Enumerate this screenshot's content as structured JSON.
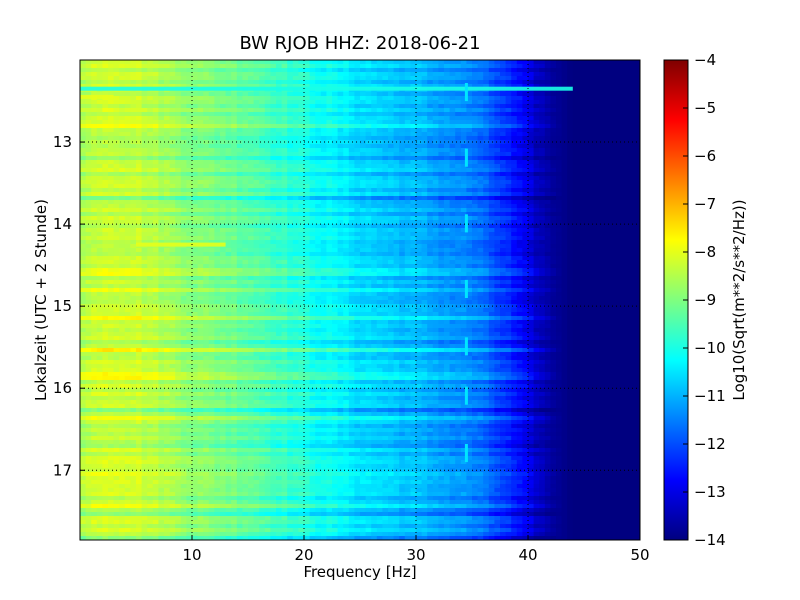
{
  "chart_data": {
    "type": "heatmap",
    "title": "BW RJOB HHZ: 2018-06-21",
    "xlabel": "Frequency [Hz]",
    "ylabel": "Lokalzeit (UTC + 2 Stunde)",
    "xlim": [
      0,
      50
    ],
    "ylim": [
      17.85,
      12.0
    ],
    "x_ticks": [
      10,
      20,
      30,
      40,
      50
    ],
    "y_ticks": [
      13,
      14,
      15,
      16,
      17
    ],
    "grid": true,
    "colormap": "jet",
    "colorbar": {
      "label": "Log10(Sqrt(m**2/s**2/Hz))",
      "min": -14,
      "max": -4,
      "ticks": [
        -4,
        -5,
        -6,
        -7,
        -8,
        -9,
        -10,
        -11,
        -12,
        -13,
        -14
      ]
    },
    "spectral_profile": {
      "description": "Typical amplitude (log10) vs frequency",
      "frequency": [
        0,
        2,
        5,
        10,
        15,
        20,
        25,
        30,
        35,
        38,
        40,
        42,
        44,
        46,
        50
      ],
      "value": [
        -8.6,
        -8.2,
        -8.3,
        -8.9,
        -9.3,
        -10.0,
        -10.6,
        -11.0,
        -11.5,
        -12.3,
        -13.1,
        -13.7,
        -14.0,
        -14.0,
        -14.0
      ]
    },
    "features": [
      {
        "type": "high-level band",
        "time": 14.25,
        "freq_range": [
          5,
          13
        ],
        "level": -8.0
      },
      {
        "type": "high-level band",
        "time": 12.45,
        "freq_range": [
          0,
          3
        ],
        "level": -8.0
      },
      {
        "type": "wideband line",
        "time": 12.35,
        "freq_range": [
          0,
          44
        ],
        "level": -10.0
      },
      {
        "type": "spectral line",
        "freq": 34.5,
        "level": -10.5
      }
    ]
  },
  "colors": {
    "jet_stops": [
      "#00007f",
      "#0000ff",
      "#007fff",
      "#00ffff",
      "#7fff7f",
      "#ffff00",
      "#ff7f00",
      "#ff0000",
      "#7f0000"
    ]
  }
}
